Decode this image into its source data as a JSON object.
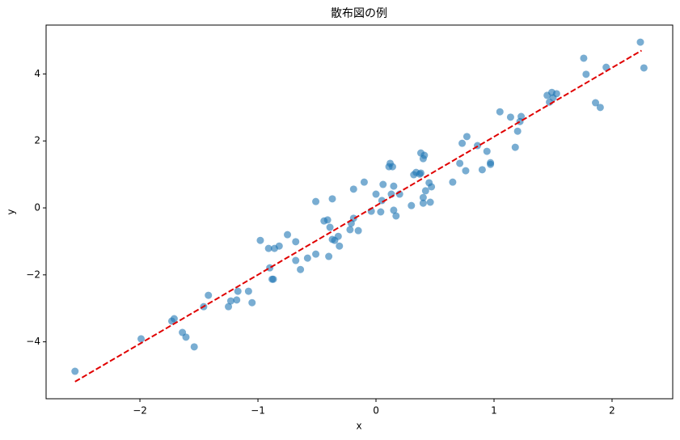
{
  "chart_data": {
    "type": "scatter",
    "title": "散布図の例",
    "xlabel": "x",
    "ylabel": "y",
    "x": [
      -2.55,
      -1.99,
      -1.64,
      -1.61,
      -1.54,
      -1.73,
      -1.71,
      -1.46,
      -1.42,
      -1.25,
      -1.23,
      -1.18,
      -1.17,
      -1.08,
      -1.05,
      -0.98,
      -0.91,
      -0.9,
      -0.88,
      -0.87,
      -0.86,
      -0.82,
      -0.75,
      -0.68,
      -0.68,
      -0.64,
      -0.58,
      -0.51,
      -0.51,
      -0.44,
      -0.41,
      -0.4,
      -0.39,
      -0.37,
      -0.37,
      -0.35,
      -0.32,
      -0.31,
      -0.22,
      -0.21,
      -0.19,
      -0.19,
      -0.15,
      -0.1,
      -0.04,
      0.0,
      0.04,
      0.05,
      0.06,
      0.11,
      0.12,
      0.14,
      0.13,
      0.15,
      0.15,
      0.17,
      0.2,
      0.3,
      0.32,
      0.34,
      0.37,
      0.38,
      0.38,
      0.4,
      0.41,
      0.4,
      0.4,
      0.42,
      0.45,
      0.47,
      0.46,
      0.65,
      0.71,
      0.73,
      0.76,
      0.77,
      0.86,
      0.9,
      0.94,
      0.97,
      0.97,
      1.05,
      1.14,
      1.18,
      1.2,
      1.22,
      1.23,
      1.45,
      1.47,
      1.49,
      1.5,
      1.53,
      1.76,
      1.78,
      1.86,
      1.9,
      1.95,
      2.24,
      2.27
    ],
    "y": [
      -4.88,
      -3.91,
      -3.72,
      -3.86,
      -4.15,
      -3.38,
      -3.31,
      -2.95,
      -2.61,
      -2.95,
      -2.78,
      -2.75,
      -2.49,
      -2.49,
      -2.83,
      -0.97,
      -1.21,
      -1.79,
      -2.13,
      -2.13,
      -1.21,
      -1.14,
      -0.8,
      -1.01,
      -1.57,
      -1.84,
      -1.5,
      -1.38,
      0.19,
      -0.39,
      -0.36,
      -1.45,
      -0.58,
      0.27,
      -0.94,
      -0.97,
      -0.85,
      -1.14,
      -0.65,
      -0.46,
      -0.31,
      0.56,
      -0.68,
      0.77,
      -0.1,
      0.41,
      -0.12,
      0.22,
      0.7,
      1.23,
      1.33,
      1.23,
      0.41,
      0.65,
      -0.07,
      -0.24,
      0.41,
      0.07,
      0.99,
      1.06,
      1.01,
      1.04,
      1.64,
      1.47,
      1.57,
      0.31,
      0.14,
      0.51,
      0.75,
      0.63,
      0.17,
      0.77,
      1.33,
      1.93,
      1.11,
      2.13,
      1.86,
      1.14,
      1.69,
      1.35,
      1.3,
      2.87,
      2.71,
      1.81,
      2.29,
      2.58,
      2.73,
      3.36,
      3.16,
      3.45,
      3.29,
      3.41,
      4.47,
      3.99,
      3.14,
      3.0,
      4.2,
      4.95,
      4.18
    ],
    "color": "#1f77b4",
    "fit_line": {
      "x": [
        -2.55,
        2.25
      ],
      "y": [
        -5.19,
        4.7
      ],
      "color": "#e00000",
      "style": "dashed"
    },
    "xlim": [
      -2.795,
      2.514
    ],
    "ylim": [
      -5.7,
      5.46
    ],
    "xticks": [
      {
        "value": -2,
        "label": "−2"
      },
      {
        "value": -1,
        "label": "−1"
      },
      0,
      1,
      2
    ],
    "yticks": [
      {
        "value": -4,
        "label": "−4"
      },
      {
        "value": -2,
        "label": "−2"
      },
      0,
      2,
      4
    ],
    "grid": false
  }
}
